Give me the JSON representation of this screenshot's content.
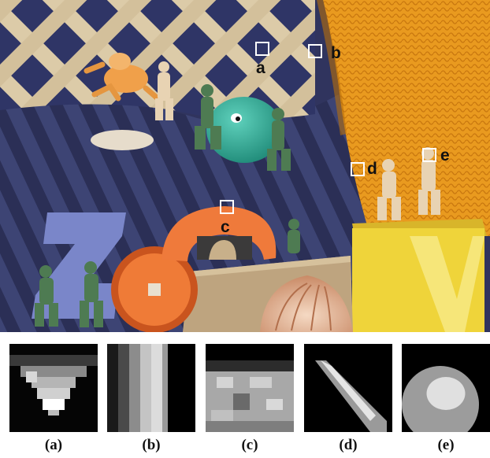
{
  "scene": {
    "markers": [
      {
        "id": "a",
        "label": "a"
      },
      {
        "id": "b",
        "label": "b"
      },
      {
        "id": "c",
        "label": "c"
      },
      {
        "id": "d",
        "label": "d"
      },
      {
        "id": "e",
        "label": "e"
      }
    ]
  },
  "patches": [
    {
      "id": "a",
      "caption": "(a)"
    },
    {
      "id": "b",
      "caption": "(b)"
    },
    {
      "id": "c",
      "caption": "(c)"
    },
    {
      "id": "d",
      "caption": "(d)"
    },
    {
      "id": "e",
      "caption": "(e)"
    }
  ],
  "colors": {
    "backdrop_blue": "#3b4170",
    "stripe_dark": "#2a2e52",
    "lattice_wood": "#d9c8a6",
    "knit_orange": "#e89a1e",
    "box_yellow": "#efd53c",
    "foam_orange": "#ee7a3a",
    "foam_blue": "#7b86c8",
    "teal_toy": "#2fae98",
    "army_green": "#4f7a4f",
    "cardboard": "#bfa583",
    "marker_white": "#ffffff"
  }
}
